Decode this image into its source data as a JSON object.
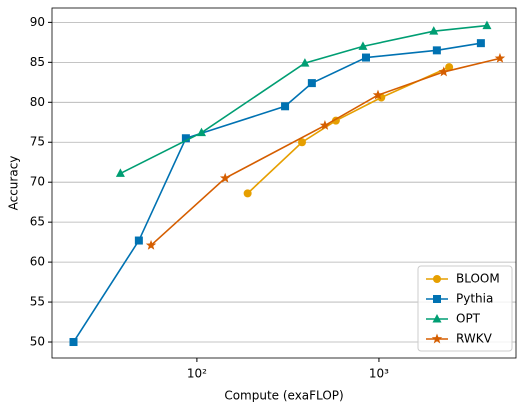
{
  "chart_data": {
    "type": "line",
    "xlabel": "Compute (exaFLOP)",
    "ylabel": "Accuracy",
    "xscale": "log",
    "xlim": [
      16,
      5660
    ],
    "xticks": [
      {
        "value": 100,
        "label": "10²"
      },
      {
        "value": 1000,
        "label": "10³"
      }
    ],
    "ylim": [
      48,
      91.8
    ],
    "yticks": [
      50,
      55,
      60,
      65,
      70,
      75,
      80,
      85,
      90
    ],
    "grid": "y",
    "legend": "lower right",
    "series": [
      {
        "name": "BLOOM",
        "color": "#e69f00",
        "marker": "circle",
        "x": [
          190,
          378,
          580,
          1030,
          2430
        ],
        "values": [
          68.6,
          75.0,
          77.7,
          80.6,
          84.4
        ]
      },
      {
        "name": "Pythia",
        "color": "#0072b2",
        "marker": "square",
        "x": [
          21,
          48,
          87,
          305,
          428,
          849,
          2080,
          3630
        ],
        "values": [
          50.0,
          62.7,
          75.5,
          79.5,
          82.4,
          85.6,
          86.5,
          87.4
        ]
      },
      {
        "name": "OPT",
        "color": "#009e73",
        "marker": "triangle",
        "x": [
          38,
          106,
          392,
          817,
          2000,
          3920
        ],
        "values": [
          71.1,
          76.2,
          84.9,
          87.0,
          88.9,
          89.6
        ]
      },
      {
        "name": "RWKV",
        "color": "#d55e00",
        "marker": "star",
        "x": [
          56,
          143,
          505,
          988,
          2270,
          4620
        ],
        "values": [
          62.1,
          70.5,
          77.1,
          80.9,
          83.8,
          85.5
        ]
      }
    ]
  }
}
